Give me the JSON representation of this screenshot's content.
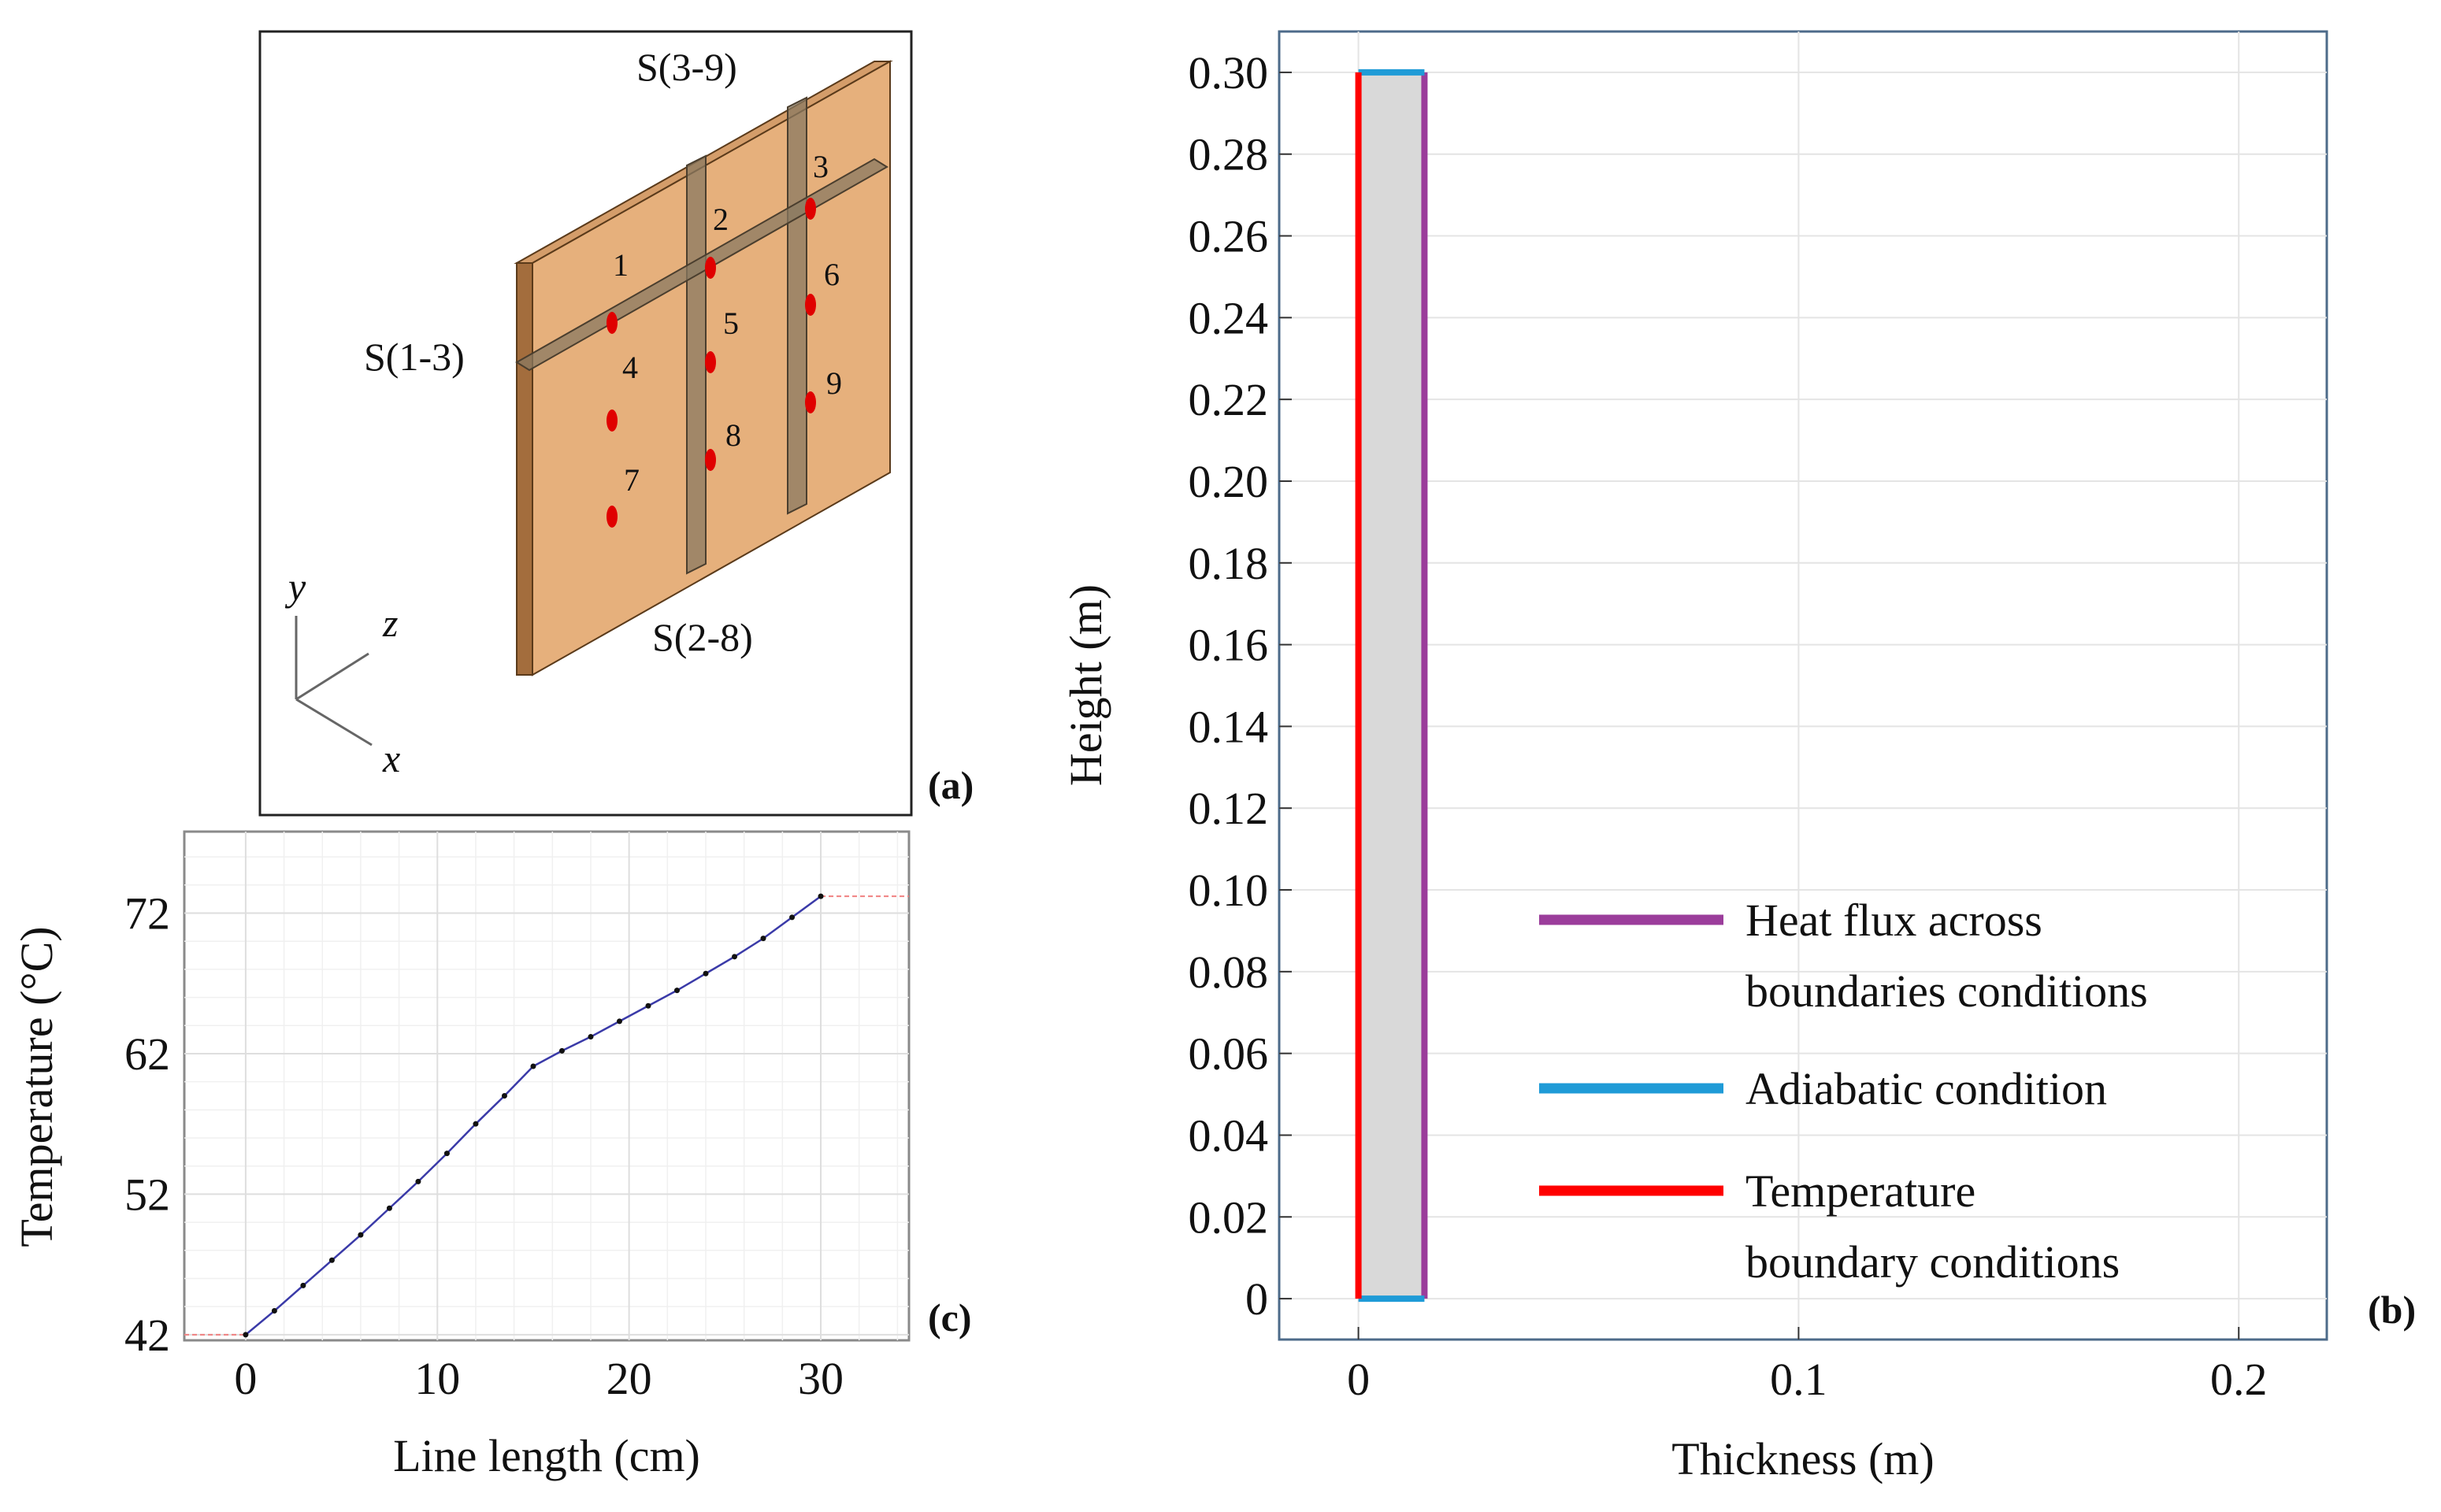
{
  "figure": {
    "panel_a": {
      "label": "(a)",
      "sensor_numbers": [
        "1",
        "2",
        "3",
        "4",
        "5",
        "6",
        "7",
        "8",
        "9"
      ],
      "section_labels": {
        "s13": "S(1-3)",
        "s39": "S(3-9)",
        "s28": "S(2-8)"
      },
      "axis_labels": {
        "y": "y",
        "z": "z",
        "x": "x"
      },
      "colors": {
        "wood_front": "#e6b07c",
        "wood_top": "#d9a06c",
        "wood_side": "#a06a3a",
        "sensor": "#e00000",
        "slice": "#8a7a62"
      }
    },
    "panel_b": {
      "label": "(b)",
      "legend": [
        {
          "label_lines": [
            "Heat flux across",
            "boundaries conditions"
          ],
          "color": "#9b3d9b"
        },
        {
          "label_lines": [
            "Adiabatic condition"
          ],
          "color": "#1f9bd7"
        },
        {
          "label_lines": [
            "Temperature",
            "boundary conditions"
          ],
          "color": "#ff0000"
        }
      ]
    },
    "panel_c": {
      "label": "(c)"
    }
  },
  "chart_data": [
    {
      "id": "panel-b",
      "type": "line",
      "title": "",
      "xlabel": "Thickness (m)",
      "ylabel": "Height (m)",
      "xlim": [
        -0.018,
        0.22
      ],
      "ylim": [
        -0.01,
        0.31
      ],
      "x_ticks": [
        0,
        0.1,
        0.2
      ],
      "x_tick_labels": [
        "0",
        "0.1",
        "0.2"
      ],
      "y_ticks": [
        0,
        0.02,
        0.04,
        0.06,
        0.08,
        0.1,
        0.12,
        0.14,
        0.16,
        0.18,
        0.2,
        0.22,
        0.24,
        0.26,
        0.28,
        0.3
      ],
      "y_tick_labels": [
        "0",
        "0.02",
        "0.04",
        "0.06",
        "0.08",
        "0.10",
        "0.12",
        "0.14",
        "0.16",
        "0.18",
        "0.20",
        "0.22",
        "0.24",
        "0.26",
        "0.28",
        "0.30"
      ],
      "grid": true,
      "domain_rect": {
        "x0": 0,
        "x1": 0.015,
        "y0": 0,
        "y1": 0.3,
        "fill": "#d9d9d9"
      },
      "series": [
        {
          "name": "Heat flux across boundaries conditions",
          "color": "#9b3d9b",
          "x": [
            0.015,
            0.015
          ],
          "y": [
            0,
            0.3
          ]
        },
        {
          "name": "Adiabatic condition (top)",
          "color": "#1f9bd7",
          "x": [
            0,
            0.015
          ],
          "y": [
            0.3,
            0.3
          ]
        },
        {
          "name": "Adiabatic condition (bottom)",
          "color": "#1f9bd7",
          "x": [
            0,
            0.015
          ],
          "y": [
            0,
            0
          ]
        },
        {
          "name": "Temperature boundary conditions",
          "color": "#ff0000",
          "x": [
            0,
            0
          ],
          "y": [
            0,
            0.3
          ]
        }
      ]
    },
    {
      "id": "panel-c",
      "type": "line",
      "title": "",
      "xlabel": "Line length (cm)",
      "ylabel": "Temperature (°C)",
      "xlim": [
        -3.2,
        34.6
      ],
      "ylim": [
        41.6,
        77.8
      ],
      "x_ticks": [
        0,
        10,
        20,
        30
      ],
      "x_tick_labels": [
        "0",
        "10",
        "20",
        "30"
      ],
      "y_ticks": [
        42,
        52,
        62,
        72
      ],
      "y_tick_labels": [
        "42",
        "52",
        "62",
        "72"
      ],
      "grid": true,
      "series": [
        {
          "name": "Temperature profile",
          "color": "#3a3aa8",
          "x": [
            0,
            1.5,
            3,
            4.5,
            6,
            7.5,
            9,
            10.5,
            12,
            13.5,
            15,
            16.5,
            18,
            19.5,
            21,
            22.5,
            24,
            25.5,
            27,
            28.5,
            30
          ],
          "y": [
            42,
            43.7,
            45.5,
            47.3,
            49.1,
            51,
            52.9,
            54.9,
            57,
            59,
            61.1,
            62.2,
            63.2,
            64.3,
            65.4,
            66.5,
            67.7,
            68.9,
            70.2,
            71.7,
            73.2
          ]
        }
      ]
    }
  ]
}
